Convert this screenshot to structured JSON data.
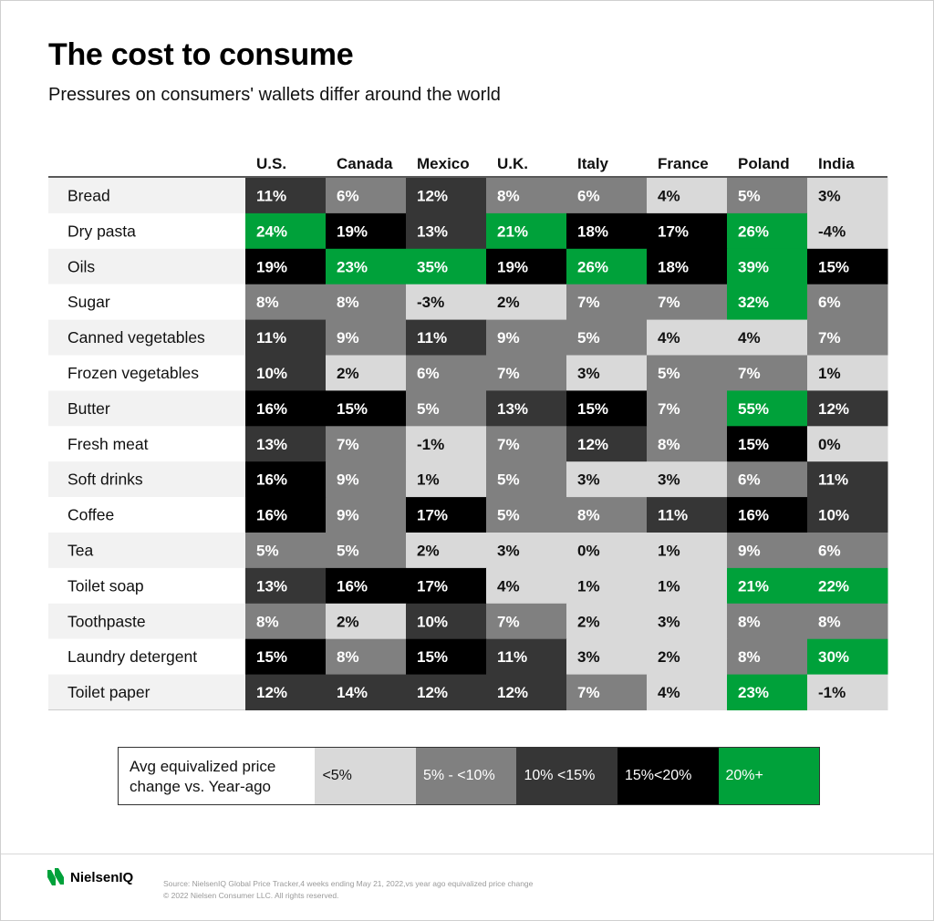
{
  "header": {
    "title": "The cost to consume",
    "subtitle": "Pressures on consumers' wallets differ around the world"
  },
  "chart_data": {
    "type": "heatmap",
    "columns": [
      "U.S.",
      "Canada",
      "Mexico",
      "U.K.",
      "Italy",
      "France",
      "Poland",
      "India"
    ],
    "rows": [
      "Bread",
      "Dry pasta",
      "Oils",
      "Sugar",
      "Canned vegetables",
      "Frozen vegetables",
      "Butter",
      "Fresh meat",
      "Soft drinks",
      "Coffee",
      "Tea",
      "Toilet soap",
      "Toothpaste",
      "Laundry detergent",
      "Toilet paper"
    ],
    "values": [
      [
        11,
        6,
        12,
        8,
        6,
        4,
        5,
        3
      ],
      [
        24,
        19,
        13,
        21,
        18,
        17,
        26,
        -4
      ],
      [
        19,
        23,
        35,
        19,
        26,
        18,
        39,
        15
      ],
      [
        8,
        8,
        -3,
        2,
        7,
        7,
        32,
        6
      ],
      [
        11,
        9,
        11,
        9,
        5,
        4,
        4,
        7
      ],
      [
        10,
        2,
        6,
        7,
        3,
        5,
        7,
        1
      ],
      [
        16,
        15,
        5,
        13,
        15,
        7,
        55,
        12
      ],
      [
        13,
        7,
        -1,
        7,
        12,
        8,
        15,
        0
      ],
      [
        16,
        9,
        1,
        5,
        3,
        3,
        6,
        11
      ],
      [
        16,
        9,
        17,
        5,
        8,
        11,
        16,
        10
      ],
      [
        5,
        5,
        2,
        3,
        0,
        1,
        9,
        6
      ],
      [
        13,
        16,
        17,
        4,
        1,
        1,
        21,
        22
      ],
      [
        8,
        2,
        10,
        7,
        2,
        3,
        8,
        8
      ],
      [
        15,
        8,
        15,
        11,
        3,
        2,
        8,
        30
      ],
      [
        12,
        14,
        12,
        12,
        7,
        4,
        23,
        -1
      ]
    ],
    "unit": "%",
    "legend": {
      "label": "Avg equivalized price change vs. Year-ago",
      "bins": [
        {
          "label": "<5%",
          "color": "#d9d9d9",
          "text_color": "#111111"
        },
        {
          "label": "5% - <10%",
          "color": "#808080",
          "text_color": "#ffffff"
        },
        {
          "label": "10% <15%",
          "color": "#363636",
          "text_color": "#ffffff"
        },
        {
          "label": "15%<20%",
          "color": "#000000",
          "text_color": "#ffffff"
        },
        {
          "label": "20%+",
          "color": "#00a13a",
          "text_color": "#ffffff"
        }
      ]
    }
  },
  "footer": {
    "brand": "NielsenIQ",
    "brand_color": "#00a13a",
    "source_line1": "Source: NielsenIQ Global Price Tracker,4 weeks ending May 21, 2022,vs year ago equivalized price change",
    "source_line2": "© 2022 Nielsen Consumer LLC. All rights reserved."
  }
}
